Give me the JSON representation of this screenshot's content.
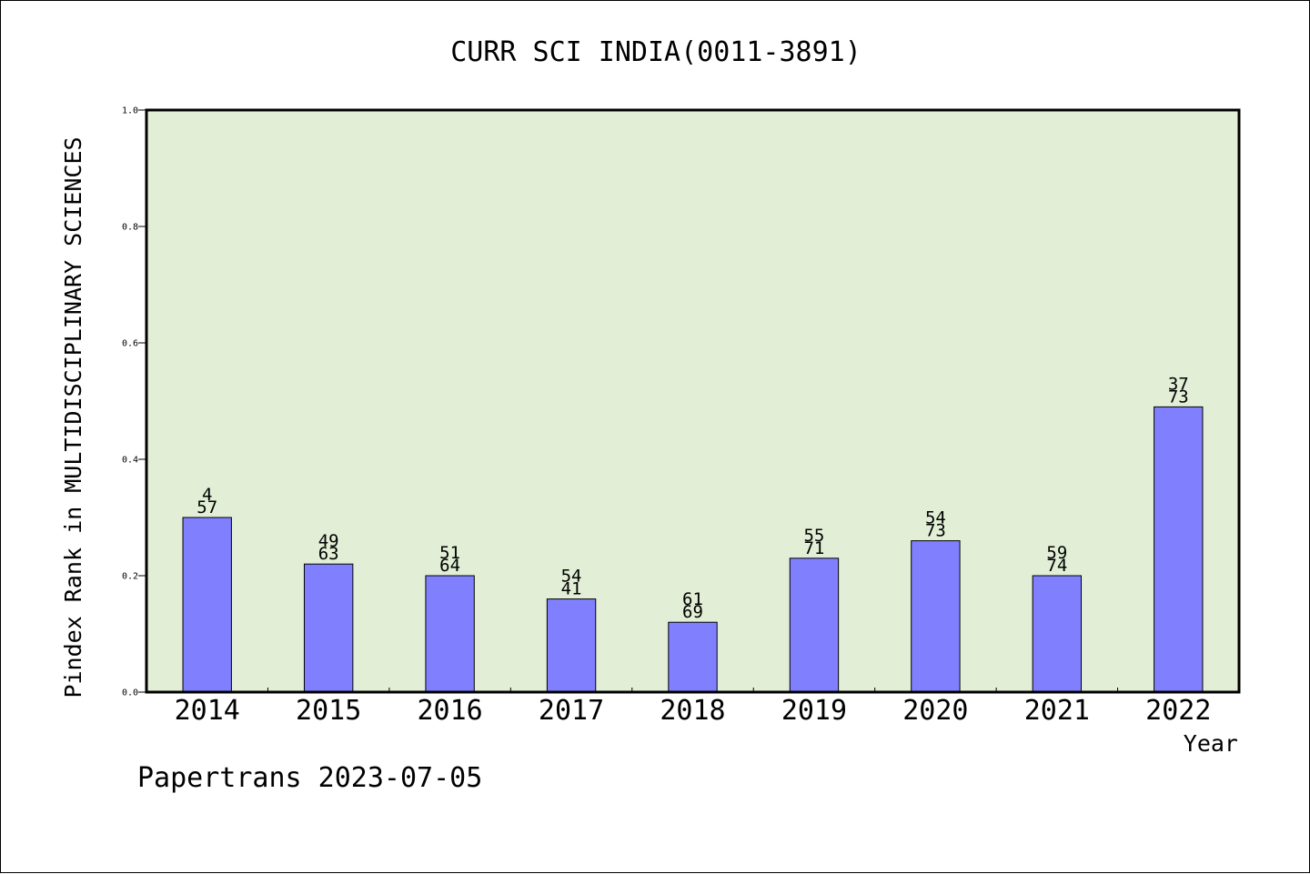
{
  "chart_data": {
    "type": "bar",
    "title": "CURR SCI INDIA(0011-3891)",
    "xlabel": "Year",
    "ylabel": "Pindex Rank in MULTIDISCIPLINARY SCIENCES",
    "ylim": [
      0,
      1.0
    ],
    "yticks": [
      "0.0",
      "0.2",
      "0.4",
      "0.6",
      "0.8",
      "1.0"
    ],
    "categories": [
      "2014",
      "2015",
      "2016",
      "2017",
      "2018",
      "2019",
      "2020",
      "2021",
      "2022"
    ],
    "values": [
      0.3,
      0.22,
      0.2,
      0.16,
      0.12,
      0.23,
      0.26,
      0.2,
      0.49
    ],
    "labels_top": [
      "4",
      "49",
      "51",
      "54",
      "61",
      "55",
      "54",
      "59",
      "37"
    ],
    "labels_bottom": [
      "57",
      "63",
      "64",
      "41",
      "69",
      "71",
      "73",
      "74",
      "73"
    ],
    "grid": false,
    "legend": "none",
    "colors": {
      "bar": "#8080ff",
      "plot_background": "#e2efd6",
      "axis": "#000000"
    }
  },
  "footer": {
    "credit": "Papertrans 2023-07-05"
  }
}
